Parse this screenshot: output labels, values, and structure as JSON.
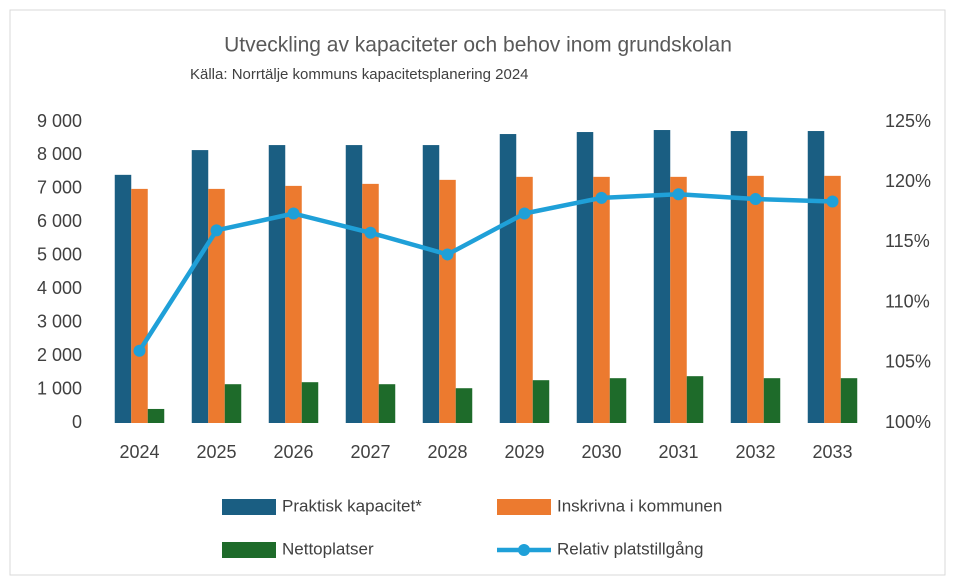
{
  "chart_data": {
    "type": "bar",
    "title": "Utveckling av kapaciteter och behov inom grundskolan",
    "subtitle": "Källa: Norrtälje kommuns kapacitetsplanering 2024",
    "categories": [
      "2024",
      "2025",
      "2026",
      "2027",
      "2028",
      "2029",
      "2030",
      "2031",
      "2032",
      "2033"
    ],
    "series": [
      {
        "name": "Praktisk kapacitet*",
        "color": "#1a5e82",
        "type": "bar",
        "values": [
          7420,
          8160,
          8310,
          8310,
          8310,
          8640,
          8700,
          8760,
          8730,
          8730
        ]
      },
      {
        "name": "Inskrivna i kommunen",
        "color": "#ec7a2f",
        "type": "bar",
        "values": [
          7000,
          7000,
          7090,
          7150,
          7270,
          7360,
          7360,
          7360,
          7390,
          7390
        ]
      },
      {
        "name": "Nettoplatser",
        "color": "#1e6b2a",
        "type": "bar",
        "values": [
          420,
          1160,
          1220,
          1160,
          1040,
          1280,
          1340,
          1400,
          1340,
          1340
        ]
      },
      {
        "name": "Relativ platstillgång",
        "color": "#1fa0d8",
        "type": "line",
        "axis": "y2",
        "values": [
          106.0,
          116.0,
          117.4,
          115.8,
          114.0,
          117.4,
          118.7,
          119.0,
          118.6,
          118.4
        ]
      }
    ],
    "ylim": [
      0,
      9000
    ],
    "yticks": [
      0,
      {
        "value": 1000,
        "label": "1 000"
      },
      {
        "value": 2000,
        "label": "2 000"
      },
      {
        "value": 3000,
        "label": "3 000"
      },
      {
        "value": 4000,
        "label": "4 000"
      },
      {
        "value": 5000,
        "label": "5 000"
      },
      {
        "value": 6000,
        "label": "6 000"
      },
      {
        "value": 7000,
        "label": "7 000"
      },
      {
        "value": 8000,
        "label": "8 000"
      },
      {
        "value": 9000,
        "label": "9 000"
      }
    ],
    "y2lim": [
      100,
      125
    ],
    "y2ticks": [
      {
        "value": 100,
        "label": "100%"
      },
      {
        "value": 105,
        "label": "105%"
      },
      {
        "value": 110,
        "label": "110%"
      },
      {
        "value": 115,
        "label": "115%"
      },
      {
        "value": 120,
        "label": "120%"
      },
      {
        "value": 125,
        "label": "125%"
      }
    ],
    "grid": false,
    "legend": "bottom"
  }
}
